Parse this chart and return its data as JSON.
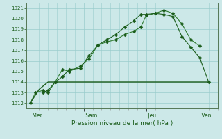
{
  "background_color": "#cce8e8",
  "grid_color": "#99cccc",
  "line_color_dark": "#1a5c1a",
  "line_color_mid": "#2d7a2d",
  "xlabel": "Pression niveau de la mer( hPa )",
  "ylim": [
    1011.5,
    1021.5
  ],
  "yticks": [
    1012,
    1013,
    1014,
    1015,
    1016,
    1017,
    1018,
    1019,
    1020,
    1021
  ],
  "day_labels": [
    " Mer",
    " Sam",
    " Jeu",
    " Ven"
  ],
  "day_positions": [
    0,
    3.0,
    6.5,
    9.5
  ],
  "line1_x": [
    0.0,
    0.3,
    0.7,
    1.0,
    1.4,
    1.8,
    2.2,
    2.8,
    3.3,
    3.8,
    4.3,
    4.8,
    5.3,
    5.8,
    6.2,
    6.5,
    7.0,
    7.5,
    8.0,
    8.5,
    9.0,
    9.5
  ],
  "line1_y": [
    1012.0,
    1013.0,
    1013.2,
    1013.0,
    1014.0,
    1015.2,
    1015.0,
    1015.5,
    1016.2,
    1017.5,
    1017.8,
    1018.0,
    1018.5,
    1018.8,
    1019.2,
    1020.3,
    1020.5,
    1020.8,
    1020.5,
    1019.5,
    1018.0,
    1017.4
  ],
  "line2_x": [
    0.7,
    1.0,
    1.4,
    1.8,
    2.2,
    2.8,
    3.3,
    3.8,
    4.3,
    4.8,
    5.3,
    5.8,
    6.2,
    6.5,
    7.0,
    7.5,
    8.0,
    8.5,
    9.0,
    9.5,
    10.0
  ],
  "line2_y": [
    1013.0,
    1013.2,
    1014.0,
    1014.5,
    1015.2,
    1015.3,
    1016.5,
    1017.5,
    1018.0,
    1018.5,
    1019.2,
    1019.8,
    1020.4,
    1020.4,
    1020.5,
    1020.4,
    1020.2,
    1018.3,
    1017.3,
    1016.3,
    1014.0
  ],
  "line3_x": [
    0.0,
    0.5,
    1.0,
    10.0
  ],
  "line3_y": [
    1012.0,
    1013.3,
    1014.0,
    1014.0
  ],
  "xlim": [
    -0.2,
    10.5
  ],
  "xtick_minor_step": 0.5,
  "figsize": [
    3.2,
    2.0
  ],
  "dpi": 100
}
